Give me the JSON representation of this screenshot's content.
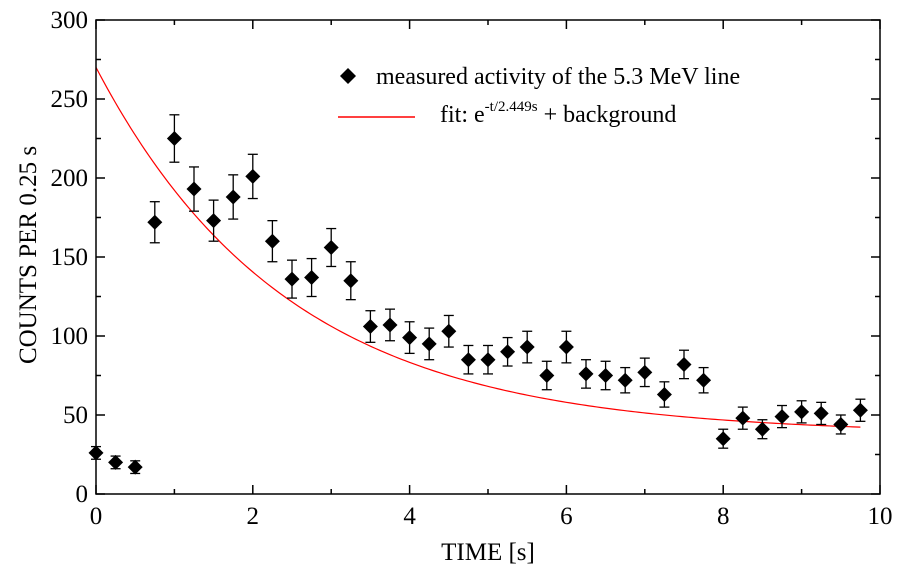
{
  "chart_data": {
    "type": "scatter",
    "xlabel": "TIME [s]",
    "ylabel": "COUNTS PER 0.25 s",
    "xlim": [
      0,
      10
    ],
    "ylim": [
      0,
      300
    ],
    "x_ticks": [
      "0",
      "2",
      "4",
      "6",
      "8",
      "10"
    ],
    "y_ticks": [
      "0",
      "50",
      "100",
      "150",
      "200",
      "250",
      "300"
    ],
    "grid": false,
    "legend_position": "top-right",
    "series": [
      {
        "name": "measured activity of the 5.3 MeV line",
        "marker": "diamond",
        "color": "#000000",
        "points": [
          {
            "x": 0.0,
            "y": 26,
            "err": 4
          },
          {
            "x": 0.25,
            "y": 20,
            "err": 4
          },
          {
            "x": 0.5,
            "y": 17,
            "err": 4
          },
          {
            "x": 0.75,
            "y": 172,
            "err": 13
          },
          {
            "x": 1.0,
            "y": 225,
            "err": 15
          },
          {
            "x": 1.25,
            "y": 193,
            "err": 14
          },
          {
            "x": 1.5,
            "y": 173,
            "err": 13
          },
          {
            "x": 1.75,
            "y": 188,
            "err": 14
          },
          {
            "x": 2.0,
            "y": 201,
            "err": 14
          },
          {
            "x": 2.25,
            "y": 160,
            "err": 13
          },
          {
            "x": 2.5,
            "y": 136,
            "err": 12
          },
          {
            "x": 2.75,
            "y": 137,
            "err": 12
          },
          {
            "x": 3.0,
            "y": 156,
            "err": 12
          },
          {
            "x": 3.25,
            "y": 135,
            "err": 12
          },
          {
            "x": 3.5,
            "y": 106,
            "err": 10
          },
          {
            "x": 3.75,
            "y": 107,
            "err": 10
          },
          {
            "x": 4.0,
            "y": 99,
            "err": 10
          },
          {
            "x": 4.25,
            "y": 95,
            "err": 10
          },
          {
            "x": 4.5,
            "y": 103,
            "err": 10
          },
          {
            "x": 4.75,
            "y": 85,
            "err": 9
          },
          {
            "x": 5.0,
            "y": 85,
            "err": 9
          },
          {
            "x": 5.25,
            "y": 90,
            "err": 9
          },
          {
            "x": 5.5,
            "y": 93,
            "err": 10
          },
          {
            "x": 5.75,
            "y": 75,
            "err": 9
          },
          {
            "x": 6.0,
            "y": 93,
            "err": 10
          },
          {
            "x": 6.25,
            "y": 76,
            "err": 9
          },
          {
            "x": 6.5,
            "y": 75,
            "err": 9
          },
          {
            "x": 6.75,
            "y": 72,
            "err": 8
          },
          {
            "x": 7.0,
            "y": 77,
            "err": 9
          },
          {
            "x": 7.25,
            "y": 63,
            "err": 8
          },
          {
            "x": 7.5,
            "y": 82,
            "err": 9
          },
          {
            "x": 7.75,
            "y": 72,
            "err": 8
          },
          {
            "x": 8.0,
            "y": 35,
            "err": 6
          },
          {
            "x": 8.25,
            "y": 48,
            "err": 7
          },
          {
            "x": 8.5,
            "y": 41,
            "err": 6
          },
          {
            "x": 8.75,
            "y": 49,
            "err": 7
          },
          {
            "x": 9.0,
            "y": 52,
            "err": 7
          },
          {
            "x": 9.25,
            "y": 51,
            "err": 7
          },
          {
            "x": 9.5,
            "y": 44,
            "err": 6
          },
          {
            "x": 9.75,
            "y": 53,
            "err": 7
          }
        ]
      },
      {
        "name": "fit: e^-t/2.449s + background",
        "type": "line",
        "color": "#ff0000",
        "x_range": [
          0,
          9.75
        ],
        "model": {
          "amplitude": 232,
          "tau": 2.449,
          "background": 38
        }
      }
    ],
    "legend": {
      "entry1": "measured activity of the 5.3 MeV line",
      "entry2_prefix": "fit: e",
      "entry2_sup": "-t/2.449s",
      "entry2_suffix": " + background"
    }
  }
}
